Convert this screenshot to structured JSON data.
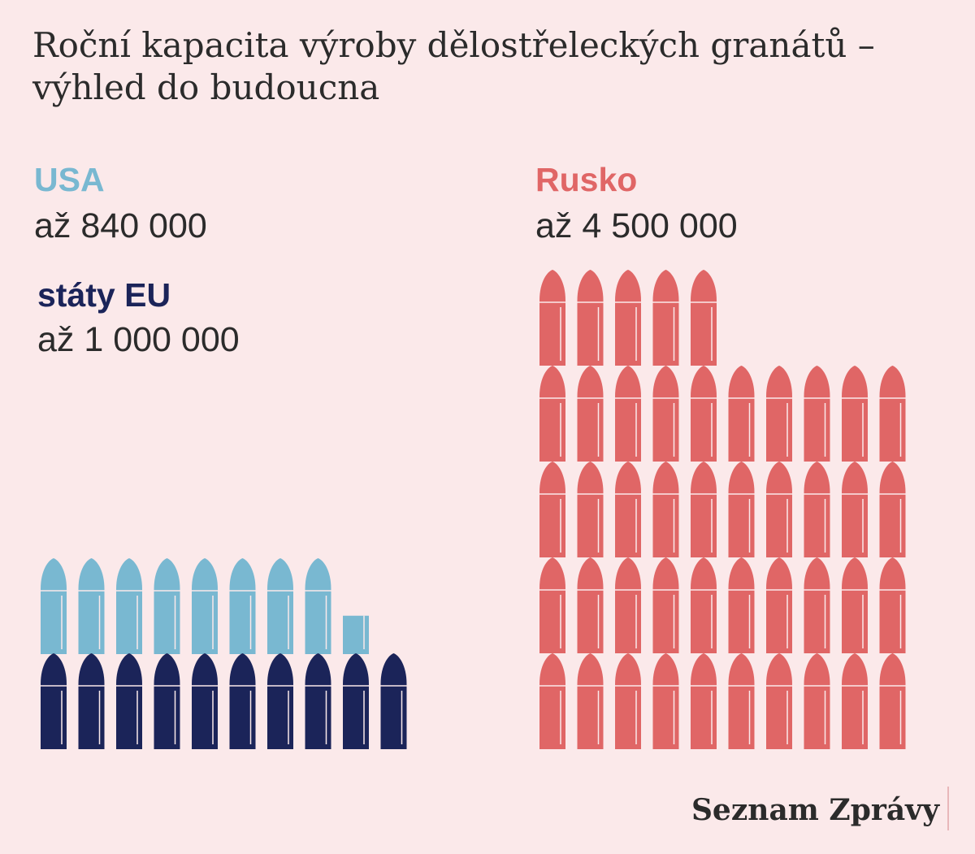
{
  "title": "Roční kapacita výroby dělostřeleckých granátů – výhled do budoucna",
  "colors": {
    "background": "#fbe9ea",
    "usa": "#79b8d1",
    "eu": "#1b2459",
    "russia": "#e06666",
    "text": "#2b2b2b"
  },
  "icon": "artillery-shell-icon",
  "brand": "Seznam Zprávy",
  "chart_data": {
    "type": "pictogram",
    "unit_per_icon": 100000,
    "series": [
      {
        "name": "USA",
        "label": "až 840 000",
        "value": 840000,
        "color": "#79b8d1"
      },
      {
        "name": "státy EU",
        "label": "až 1 000 000",
        "value": 1000000,
        "color": "#1b2459"
      },
      {
        "name": "Rusko",
        "label": "až 4 500 000",
        "value": 4500000,
        "color": "#e06666"
      }
    ]
  }
}
